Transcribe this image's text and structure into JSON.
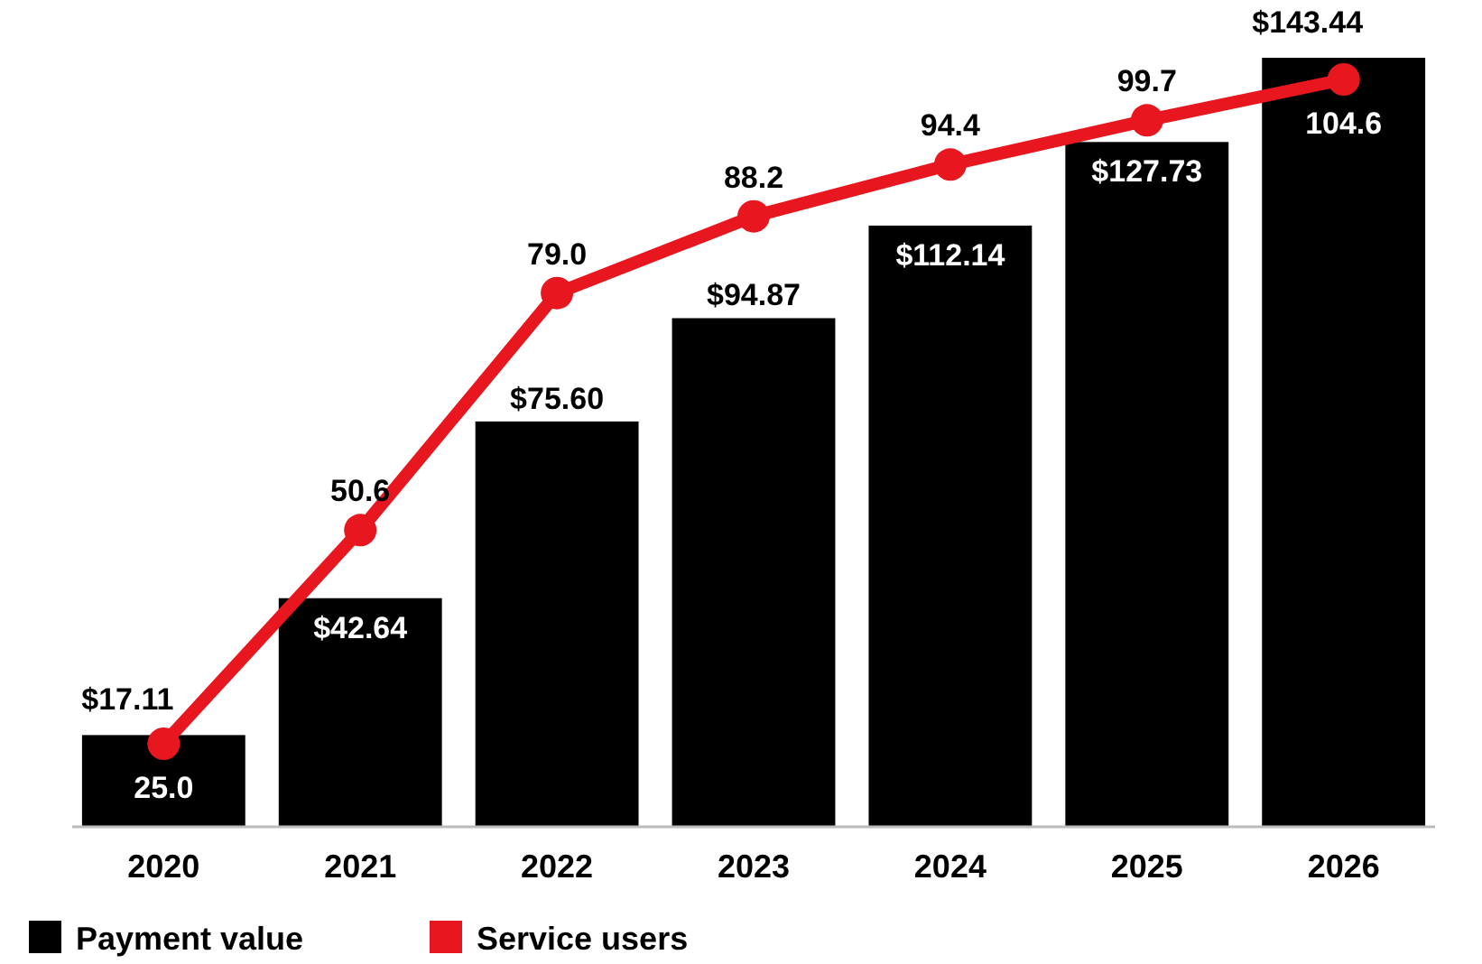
{
  "chart_data": {
    "type": "bar",
    "categories": [
      "2020",
      "2021",
      "2022",
      "2023",
      "2024",
      "2025",
      "2026"
    ],
    "series": [
      {
        "name": "Payment value",
        "color": "#000000",
        "values": [
          17.11,
          42.64,
          75.6,
          94.87,
          112.14,
          127.73,
          143.44
        ],
        "value_labels": [
          "$17.11",
          "$42.64",
          "$75.60",
          "$94.87",
          "$112.14",
          "$127.73",
          "$143.44"
        ]
      },
      {
        "name": "Service users",
        "type": "line",
        "axis": "y2",
        "color": "#e8161e",
        "values": [
          25.0,
          50.6,
          79.0,
          88.2,
          94.4,
          99.7,
          104.6
        ],
        "value_labels": [
          "25.0",
          "50.6",
          "79.0",
          "88.2",
          "94.4",
          "99.7",
          "104.6"
        ]
      }
    ],
    "marker": "circle",
    "legend": "bottom left",
    "tick_labels": "x"
  }
}
